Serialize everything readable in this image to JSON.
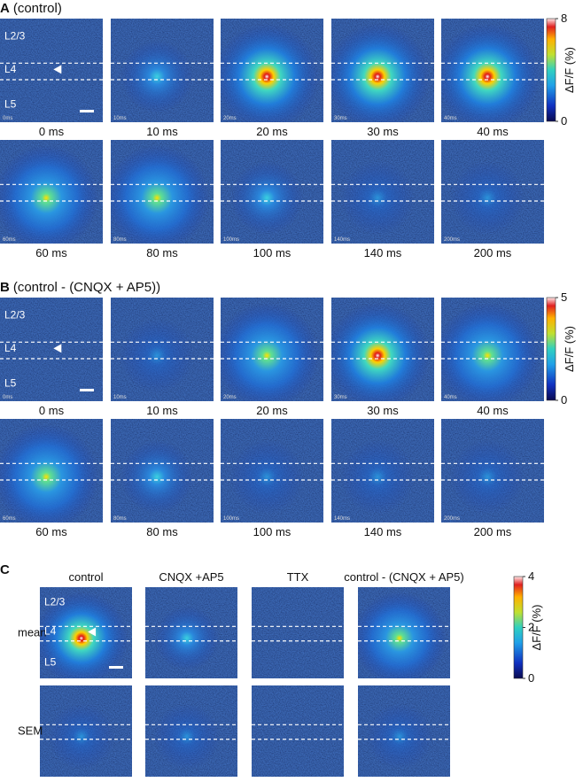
{
  "panels": [
    {
      "letter": "A",
      "title": "(control)",
      "layers": [
        "L2/3",
        "L4",
        "L5"
      ],
      "frames": [
        {
          "label": "0 ms",
          "stamp": "0ms"
        },
        {
          "label": "10 ms",
          "stamp": "10ms"
        },
        {
          "label": "20 ms",
          "stamp": "20ms"
        },
        {
          "label": "30 ms",
          "stamp": "30ms"
        },
        {
          "label": "40 ms",
          "stamp": "40ms"
        },
        {
          "label": "60 ms",
          "stamp": "60ms"
        },
        {
          "label": "80 ms",
          "stamp": "80ms"
        },
        {
          "label": "100 ms",
          "stamp": "100ms"
        },
        {
          "label": "140 ms",
          "stamp": "140ms"
        },
        {
          "label": "200 ms",
          "stamp": "200ms"
        }
      ],
      "colorbar": {
        "label": "ΔF/F (%)",
        "ticks": [
          0,
          8
        ]
      }
    },
    {
      "letter": "B",
      "title": "(control - (CNQX + AP5))",
      "layers": [
        "L2/3",
        "L4",
        "L5"
      ],
      "frames": [
        {
          "label": "0 ms",
          "stamp": "0ms"
        },
        {
          "label": "10 ms",
          "stamp": "10ms"
        },
        {
          "label": "20 ms",
          "stamp": "20ms"
        },
        {
          "label": "30 ms",
          "stamp": "30ms"
        },
        {
          "label": "40 ms",
          "stamp": "40ms"
        },
        {
          "label": "60 ms",
          "stamp": "60ms"
        },
        {
          "label": "80 ms",
          "stamp": "80ms"
        },
        {
          "label": "100 ms",
          "stamp": "100ms"
        },
        {
          "label": "140 ms",
          "stamp": "140ms"
        },
        {
          "label": "200 ms",
          "stamp": "200ms"
        }
      ],
      "colorbar": {
        "label": "ΔF/F (%)",
        "ticks": [
          0,
          5
        ]
      }
    }
  ],
  "panel_c": {
    "letter": "C",
    "columns": [
      "control",
      "CNQX +AP5",
      "TTX",
      "control - (CNQX + AP5)"
    ],
    "rows": [
      "mean",
      "SEM"
    ],
    "layers": [
      "L2/3",
      "L4",
      "L5"
    ],
    "colorbar": {
      "label": "ΔF/F (%)",
      "ticks": [
        0,
        2,
        4
      ]
    }
  }
}
